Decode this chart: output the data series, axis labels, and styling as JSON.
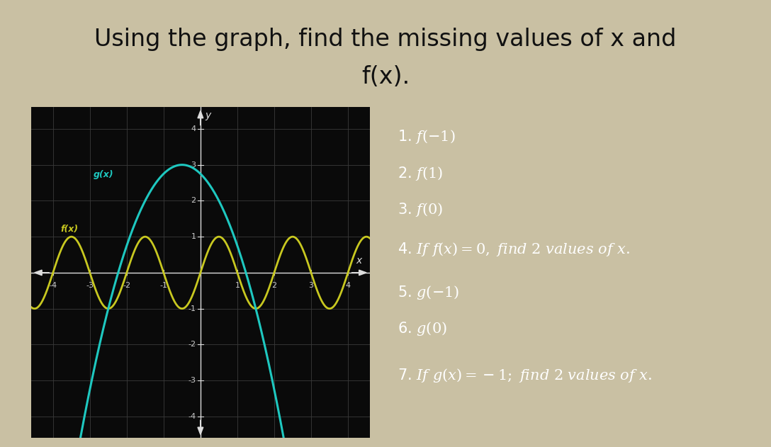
{
  "title_line1": "Using the graph, find the missing values of x and",
  "title_line2": "f(x).",
  "title_bg_color": "#c9c0a3",
  "graph_bg_color": "#0a0a0a",
  "right_bg_color": "#111111",
  "fx_color": "#c8c820",
  "gx_color": "#1ec8c0",
  "fx_label": "f(x)",
  "gx_label": "g(x)",
  "xlim": [
    -4.6,
    4.6
  ],
  "ylim": [
    -4.6,
    4.6
  ],
  "xticks": [
    -4,
    -3,
    -2,
    -1,
    1,
    2,
    3,
    4
  ],
  "yticks": [
    -4,
    -3,
    -2,
    -1,
    1,
    2,
    3,
    4
  ],
  "grid_color": "#3a3a3a",
  "axis_color": "#dddddd",
  "tick_color": "#cccccc",
  "question_color": "#ffffff",
  "title_color": "#111111",
  "title_fontsize": 24
}
